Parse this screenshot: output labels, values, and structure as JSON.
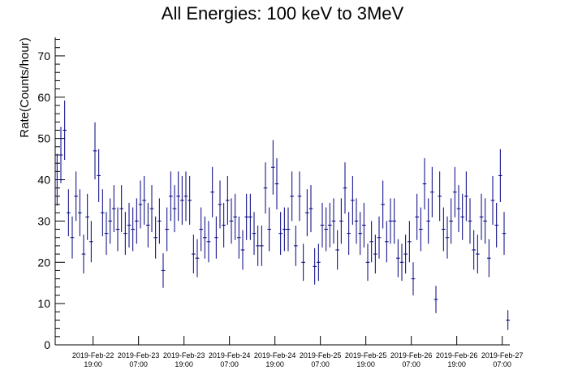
{
  "chart_data": {
    "type": "errorbar",
    "title": "All Energies:  100 keV to 3MeV",
    "y_label": "Rate(Counts/hour)",
    "color": "#000080",
    "bin_hours": 1,
    "x": [
      "2019-02-22 09:30",
      "2019-02-22 10:30",
      "2019-02-22 11:30",
      "2019-02-22 12:30",
      "2019-02-22 13:30",
      "2019-02-22 14:30",
      "2019-02-22 15:30",
      "2019-02-22 16:30",
      "2019-02-22 17:30",
      "2019-02-22 18:30",
      "2019-02-22 19:30",
      "2019-02-22 20:30",
      "2019-02-22 21:30",
      "2019-02-22 22:30",
      "2019-02-22 23:30",
      "2019-02-23 00:30",
      "2019-02-23 01:30",
      "2019-02-23 02:30",
      "2019-02-23 03:30",
      "2019-02-23 04:30",
      "2019-02-23 05:30",
      "2019-02-23 06:30",
      "2019-02-23 07:30",
      "2019-02-23 08:30",
      "2019-02-23 09:30",
      "2019-02-23 10:30",
      "2019-02-23 11:30",
      "2019-02-23 12:30",
      "2019-02-23 13:30",
      "2019-02-23 14:30",
      "2019-02-23 15:30",
      "2019-02-23 16:30",
      "2019-02-23 17:30",
      "2019-02-23 18:30",
      "2019-02-23 19:30",
      "2019-02-23 20:30",
      "2019-02-23 21:30",
      "2019-02-23 22:30",
      "2019-02-23 23:30",
      "2019-02-24 00:30",
      "2019-02-24 01:30",
      "2019-02-24 02:30",
      "2019-02-24 03:30",
      "2019-02-24 04:30",
      "2019-02-24 05:30",
      "2019-02-24 06:30",
      "2019-02-24 07:30",
      "2019-02-24 08:30",
      "2019-02-24 09:30",
      "2019-02-24 10:30",
      "2019-02-24 11:30",
      "2019-02-24 12:30",
      "2019-02-24 13:30",
      "2019-02-24 14:30",
      "2019-02-24 15:30",
      "2019-02-24 16:30",
      "2019-02-24 17:30",
      "2019-02-24 18:30",
      "2019-02-24 19:30",
      "2019-02-24 20:30",
      "2019-02-24 21:30",
      "2019-02-24 22:30",
      "2019-02-24 23:30",
      "2019-02-25 00:30",
      "2019-02-25 01:30",
      "2019-02-25 02:30",
      "2019-02-25 03:30",
      "2019-02-25 04:30",
      "2019-02-25 05:30",
      "2019-02-25 06:30",
      "2019-02-25 07:30",
      "2019-02-25 08:30",
      "2019-02-25 09:30",
      "2019-02-25 10:30",
      "2019-02-25 11:30",
      "2019-02-25 12:30",
      "2019-02-25 13:30",
      "2019-02-25 14:30",
      "2019-02-25 15:30",
      "2019-02-25 16:30",
      "2019-02-25 17:30",
      "2019-02-25 18:30",
      "2019-02-25 19:30",
      "2019-02-25 20:30",
      "2019-02-25 21:30",
      "2019-02-25 22:30",
      "2019-02-25 23:30",
      "2019-02-26 00:30",
      "2019-02-26 01:30",
      "2019-02-26 02:30",
      "2019-02-26 03:30",
      "2019-02-26 04:30",
      "2019-02-26 05:30",
      "2019-02-26 06:30",
      "2019-02-26 07:30",
      "2019-02-26 08:30",
      "2019-02-26 09:30",
      "2019-02-26 10:30",
      "2019-02-26 11:30",
      "2019-02-26 12:30",
      "2019-02-26 13:30",
      "2019-02-26 14:30",
      "2019-02-26 15:30",
      "2019-02-26 16:30",
      "2019-02-26 17:30",
      "2019-02-26 18:30",
      "2019-02-26 19:30",
      "2019-02-26 20:30",
      "2019-02-26 21:30",
      "2019-02-26 22:30",
      "2019-02-26 23:30",
      "2019-02-27 00:30",
      "2019-02-27 01:30",
      "2019-02-27 02:30",
      "2019-02-27 03:30",
      "2019-02-27 04:30",
      "2019-02-27 05:30",
      "2019-02-27 06:30",
      "2019-02-27 07:30",
      "2019-02-27 08:30"
    ],
    "values": [
      40,
      46,
      52,
      32,
      26,
      36,
      32,
      22,
      31,
      25,
      47,
      41,
      32,
      27,
      30,
      33,
      28,
      33,
      27,
      29,
      28,
      30,
      34,
      35,
      29,
      33,
      26,
      30,
      18,
      28,
      36,
      33,
      36,
      35,
      36,
      35,
      22,
      21,
      28,
      26,
      25,
      37,
      26,
      34,
      29,
      35,
      30,
      31,
      26,
      23,
      31,
      31,
      27,
      24,
      24,
      38,
      28,
      43,
      39,
      27,
      28,
      28,
      36,
      24,
      36,
      20,
      32,
      33,
      19,
      20,
      29,
      28,
      29,
      30,
      23,
      30,
      38,
      27,
      35,
      30,
      27,
      29,
      20,
      25,
      22,
      26,
      34,
      25,
      30,
      30,
      21,
      20,
      22,
      25,
      16,
      31,
      28,
      39,
      30,
      37,
      11,
      36,
      28,
      26,
      30,
      37,
      33,
      31,
      36,
      30,
      23,
      22,
      31,
      30,
      21,
      35,
      29,
      41,
      27,
      6
    ],
    "errors": [
      6.3,
      6.8,
      7.2,
      5.7,
      5.1,
      6,
      5.7,
      4.7,
      5.6,
      5,
      6.9,
      6.4,
      5.7,
      5.2,
      5.5,
      5.7,
      5.3,
      5.7,
      5.2,
      5.4,
      5.3,
      5.5,
      5.8,
      5.9,
      5.4,
      5.7,
      5.1,
      5.5,
      4.2,
      5.3,
      6,
      5.7,
      6,
      5.9,
      6,
      5.9,
      4.7,
      4.6,
      5.3,
      5.1,
      5,
      6.1,
      5.1,
      5.8,
      5.4,
      5.9,
      5.5,
      5.6,
      5.1,
      4.8,
      5.6,
      5.6,
      5.2,
      4.9,
      4.9,
      6.2,
      5.3,
      6.6,
      6.2,
      5.2,
      5.3,
      5.3,
      6,
      4.9,
      6,
      4.5,
      5.7,
      5.7,
      4.4,
      4.5,
      5.4,
      5.3,
      5.4,
      5.5,
      4.8,
      5.5,
      6.2,
      5.2,
      5.9,
      5.5,
      5.2,
      5.4,
      4.5,
      5,
      4.7,
      5.1,
      5.8,
      5,
      5.5,
      5.5,
      4.6,
      4.5,
      4.7,
      5,
      4,
      5.6,
      5.3,
      6.2,
      5.5,
      6.1,
      3.3,
      6,
      5.3,
      5.1,
      5.5,
      6.1,
      5.7,
      5.6,
      6,
      5.5,
      4.8,
      4.7,
      5.6,
      5.5,
      4.6,
      5.9,
      5.4,
      6.4,
      5.2,
      2.4
    ],
    "xlim": [
      "2019-02-22 09:00",
      "2019-02-27 09:00"
    ],
    "xticks": [
      {
        "value": "2019-02-22 19:00",
        "label": "2019-Feb-22 19:00"
      },
      {
        "value": "2019-02-23 07:00",
        "label": "2019-Feb-23 07:00"
      },
      {
        "value": "2019-02-23 19:00",
        "label": "2019-Feb-23 19:00"
      },
      {
        "value": "2019-02-24 07:00",
        "label": "2019-Feb-24 07:00"
      },
      {
        "value": "2019-02-24 19:00",
        "label": "2019-Feb-24 19:00"
      },
      {
        "value": "2019-02-25 07:00",
        "label": "2019-Feb-25 07:00"
      },
      {
        "value": "2019-02-25 19:00",
        "label": "2019-Feb-25 19:00"
      },
      {
        "value": "2019-02-26 07:00",
        "label": "2019-Feb-26 07:00"
      },
      {
        "value": "2019-02-26 19:00",
        "label": "2019-Feb-26 19:00"
      },
      {
        "value": "2019-02-27 07:00",
        "label": "2019-Feb-27 07:00"
      }
    ],
    "ylim": [
      0,
      74.5
    ],
    "yticks": [
      0,
      10,
      20,
      30,
      40,
      50,
      60,
      70
    ],
    "yminorticks": [
      2,
      4,
      6,
      8,
      12,
      14,
      16,
      18,
      22,
      24,
      26,
      28,
      32,
      34,
      36,
      38,
      42,
      44,
      46,
      48,
      52,
      54,
      56,
      58,
      62,
      64,
      66,
      68,
      72,
      74
    ],
    "grid": false
  }
}
